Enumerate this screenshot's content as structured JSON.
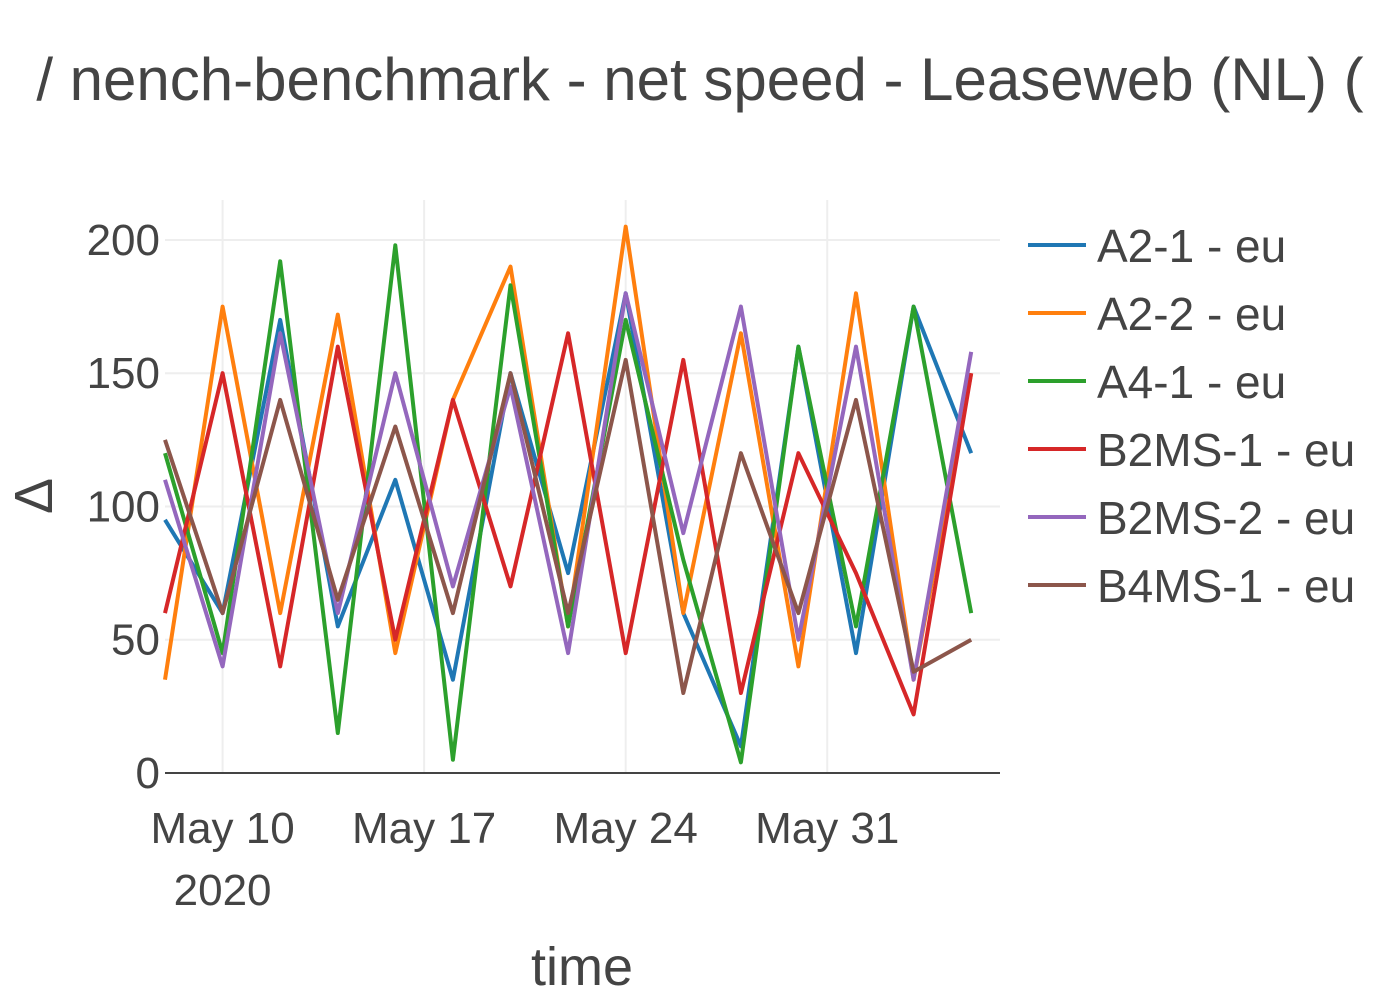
{
  "chart_data": {
    "type": "line",
    "title": "/ nench-benchmark - net speed - Leaseweb (NL) (",
    "xlabel": "time",
    "ylabel": "Δ",
    "x_range": [
      "2020-05-08",
      "2020-06-06"
    ],
    "ylim": [
      0,
      215
    ],
    "y_ticks": [
      0,
      50,
      100,
      150,
      200
    ],
    "x_ticks": [
      {
        "date": "2020-05-10",
        "label": "May 10",
        "sublabel": "2020"
      },
      {
        "date": "2020-05-17",
        "label": "May 17",
        "sublabel": ""
      },
      {
        "date": "2020-05-24",
        "label": "May 24",
        "sublabel": ""
      },
      {
        "date": "2020-05-31",
        "label": "May 31",
        "sublabel": ""
      }
    ],
    "grid": true,
    "legend_position": "right",
    "series": [
      {
        "name": "A2-1 - eu",
        "color": "#1f77b4",
        "x": [
          "2020-05-08",
          "2020-05-10",
          "2020-05-12",
          "2020-05-14",
          "2020-05-16",
          "2020-05-18",
          "2020-05-20",
          "2020-05-22",
          "2020-05-24",
          "2020-05-26",
          "2020-05-28",
          "2020-05-30",
          "2020-06-01",
          "2020-06-03",
          "2020-06-05"
        ],
        "values": [
          95,
          60,
          170,
          55,
          110,
          35,
          150,
          75,
          180,
          60,
          10,
          160,
          45,
          175,
          120
        ]
      },
      {
        "name": "A2-2 - eu",
        "color": "#ff7f0e",
        "x": [
          "2020-05-08",
          "2020-05-10",
          "2020-05-12",
          "2020-05-14",
          "2020-05-16",
          "2020-05-18",
          "2020-05-20",
          "2020-05-22",
          "2020-05-24",
          "2020-05-26",
          "2020-05-28",
          "2020-05-30",
          "2020-06-01",
          "2020-06-03",
          "2020-06-05"
        ],
        "values": [
          35,
          175,
          60,
          172,
          45,
          140,
          190,
          55,
          205,
          60,
          165,
          40,
          180,
          35,
          150
        ]
      },
      {
        "name": "A4-1 - eu",
        "color": "#2ca02c",
        "x": [
          "2020-05-08",
          "2020-05-10",
          "2020-05-12",
          "2020-05-14",
          "2020-05-16",
          "2020-05-18",
          "2020-05-20",
          "2020-05-22",
          "2020-05-24",
          "2020-05-26",
          "2020-05-28",
          "2020-05-30",
          "2020-06-01",
          "2020-06-03",
          "2020-06-05"
        ],
        "values": [
          120,
          45,
          192,
          15,
          198,
          5,
          183,
          55,
          170,
          80,
          4,
          160,
          55,
          175,
          60
        ]
      },
      {
        "name": "B2MS-1 - eu",
        "color": "#d62728",
        "x": [
          "2020-05-08",
          "2020-05-10",
          "2020-05-12",
          "2020-05-14",
          "2020-05-16",
          "2020-05-18",
          "2020-05-20",
          "2020-05-22",
          "2020-05-24",
          "2020-05-26",
          "2020-05-28",
          "2020-05-30",
          "2020-06-01",
          "2020-06-03",
          "2020-06-05"
        ],
        "values": [
          60,
          150,
          40,
          160,
          50,
          140,
          70,
          165,
          45,
          155,
          30,
          120,
          75,
          22,
          150
        ]
      },
      {
        "name": "B2MS-2 - eu",
        "color": "#9467bd",
        "x": [
          "2020-05-08",
          "2020-05-10",
          "2020-05-12",
          "2020-05-14",
          "2020-05-16",
          "2020-05-18",
          "2020-05-20",
          "2020-05-22",
          "2020-05-24",
          "2020-05-26",
          "2020-05-28",
          "2020-05-30",
          "2020-06-01",
          "2020-06-03",
          "2020-06-05"
        ],
        "values": [
          110,
          40,
          165,
          60,
          150,
          70,
          145,
          45,
          180,
          90,
          175,
          50,
          160,
          35,
          158
        ]
      },
      {
        "name": "B4MS-1 - eu",
        "color": "#8c564b",
        "x": [
          "2020-05-08",
          "2020-05-10",
          "2020-05-12",
          "2020-05-14",
          "2020-05-16",
          "2020-05-18",
          "2020-05-20",
          "2020-05-22",
          "2020-05-24",
          "2020-05-26",
          "2020-05-28",
          "2020-05-30",
          "2020-06-01",
          "2020-06-03",
          "2020-06-05"
        ],
        "values": [
          125,
          60,
          140,
          65,
          130,
          60,
          150,
          60,
          155,
          30,
          120,
          60,
          140,
          38,
          50
        ]
      }
    ]
  }
}
